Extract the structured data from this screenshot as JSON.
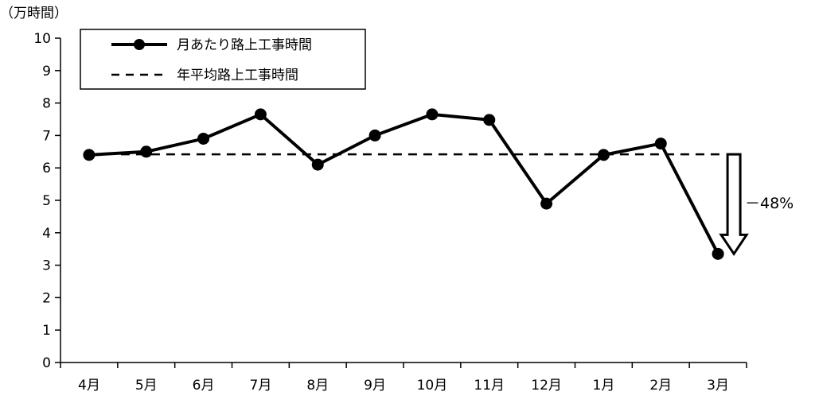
{
  "chart_data": {
    "type": "line",
    "unit_label": "（万時間）",
    "categories": [
      "4月",
      "5月",
      "6月",
      "7月",
      "8月",
      "9月",
      "10月",
      "11月",
      "12月",
      "1月",
      "2月",
      "3月"
    ],
    "series": [
      {
        "name": "月あたり路上工事時間",
        "style": "solid-with-markers",
        "values": [
          6.4,
          6.5,
          6.9,
          7.65,
          6.1,
          7.0,
          7.65,
          7.48,
          4.9,
          6.4,
          6.75,
          3.35
        ]
      },
      {
        "name": "年平均路上工事時間",
        "style": "dashed",
        "value": 6.42
      }
    ],
    "ylim": [
      0,
      10
    ],
    "yticks": [
      "0",
      "1",
      "2",
      "3",
      "4",
      "5",
      "6",
      "7",
      "8",
      "9",
      "10"
    ],
    "grid": false,
    "legend_position": "top-left",
    "annotation": {
      "text": "－48%",
      "from_value": 6.42,
      "to_value": 3.35,
      "target_category": "3月"
    },
    "colors": {
      "line": "#000000",
      "background": "#ffffff",
      "arrow_fill": "#ffffff"
    }
  }
}
